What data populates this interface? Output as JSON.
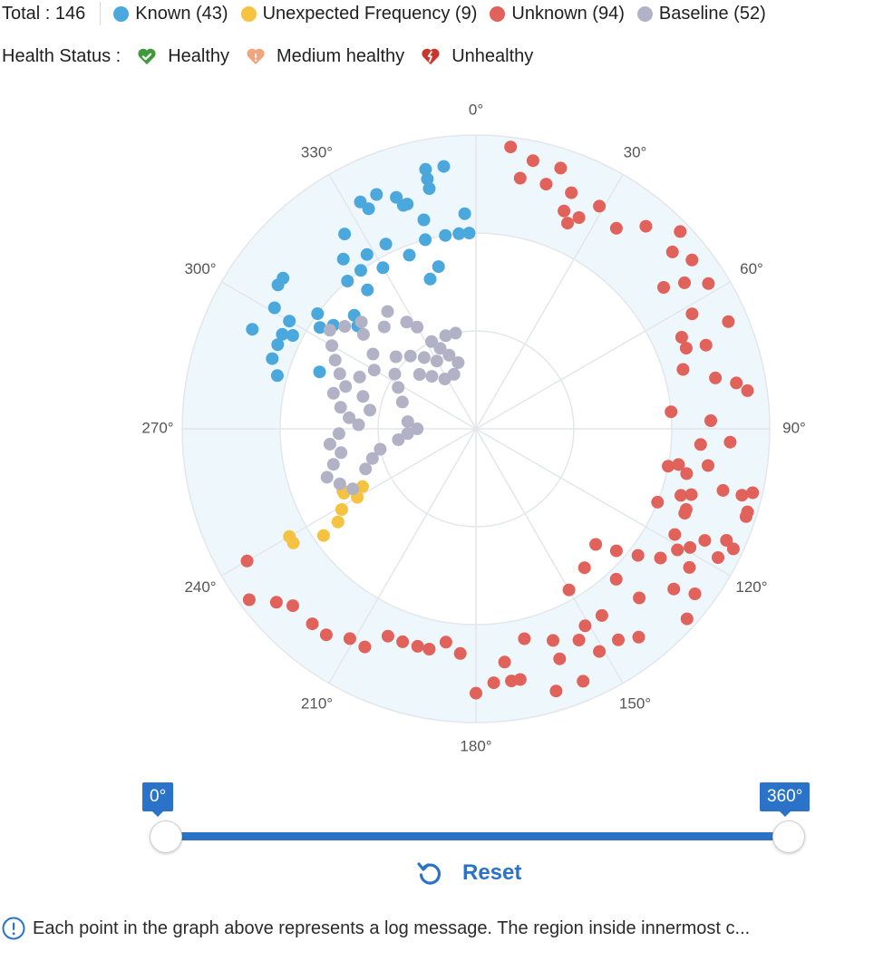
{
  "header": {
    "total_label": "Total : 146",
    "legend": [
      {
        "label": "Known (43)",
        "color": "#4aa8dd"
      },
      {
        "label": "Unexpected Frequency (9)",
        "color": "#f5c242"
      },
      {
        "label": "Unknown (94)",
        "color": "#e0625a"
      },
      {
        "label": "Baseline (52)",
        "color": "#b2b2c6"
      }
    ]
  },
  "health": {
    "label": "Health Status :",
    "items": [
      {
        "label": "Healthy",
        "icon": "heart-check-icon",
        "color": "#3f9a3b"
      },
      {
        "label": "Medium healthy",
        "icon": "heart-warning-icon",
        "color": "#f0a57c"
      },
      {
        "label": "Unhealthy",
        "icon": "heart-broken-icon",
        "color": "#c9372c"
      }
    ]
  },
  "chart_data": {
    "type": "scatter",
    "coordinate_system": "polar",
    "angle_ticks": [
      "0°",
      "30°",
      "60°",
      "90°",
      "120°",
      "150°",
      "180°",
      "210°",
      "240°",
      "270°",
      "300°",
      "330°"
    ],
    "rings": 3,
    "series": [
      {
        "name": "Known",
        "color": "#4aa8dd",
        "points": [
          [
            324,
            2.0
          ],
          [
            322,
            2.2
          ],
          [
            330,
            1.9
          ],
          [
            334,
            2.1
          ],
          [
            347,
            1.7
          ],
          [
            343,
            1.6
          ],
          [
            343,
            2.4
          ],
          [
            346,
            2.2
          ],
          [
            342,
            2.4
          ],
          [
            339,
            1.9
          ],
          [
            334,
            2.5
          ],
          [
            333,
            2.6
          ],
          [
            328,
            2.1
          ],
          [
            322,
            1.8
          ],
          [
            319,
            2.0
          ],
          [
            313,
            1.7
          ],
          [
            306,
            1.8
          ],
          [
            306,
            2.0
          ],
          [
            308,
            2.5
          ],
          [
            300,
            2.2
          ],
          [
            296,
            2.2
          ],
          [
            293,
            2.2
          ],
          [
            290,
            1.7
          ],
          [
            289,
            2.2
          ],
          [
            285,
            2.1
          ],
          [
            294,
            2.5
          ],
          [
            301,
            2.4
          ],
          [
            297,
            2.1
          ],
          [
            303,
            1.9
          ],
          [
            311,
            1.6
          ],
          [
            306,
            2.5
          ],
          [
            326,
            2.4
          ],
          [
            337,
            2.6
          ],
          [
            345,
            2.0
          ],
          [
            351,
            2.0
          ],
          [
            355,
            2.0
          ],
          [
            358,
            2.0
          ],
          [
            357,
            2.2
          ],
          [
            353,
            2.7
          ],
          [
            349,
            2.5
          ],
          [
            349,
            2.6
          ],
          [
            341,
            2.5
          ],
          [
            349,
            2.7
          ]
        ]
      },
      {
        "name": "Unexpected Frequency",
        "color": "#f5c242",
        "points": [
          [
            243,
            1.3
          ],
          [
            240,
            1.4
          ],
          [
            244,
            1.5
          ],
          [
            239,
            1.6
          ],
          [
            245,
            1.5
          ],
          [
            236,
            1.7
          ],
          [
            235,
            1.9
          ],
          [
            240,
            2.2
          ],
          [
            238,
            2.2
          ]
        ]
      },
      {
        "name": "Unknown",
        "color": "#e0625a",
        "points": [
          [
            7,
            2.9
          ],
          [
            10,
            2.6
          ],
          [
            12,
            2.8
          ],
          [
            16,
            2.6
          ],
          [
            18,
            2.8
          ],
          [
            22,
            2.6
          ],
          [
            24,
            2.3
          ],
          [
            22,
            2.4
          ],
          [
            26,
            2.4
          ],
          [
            29,
            2.6
          ],
          [
            35,
            2.5
          ],
          [
            40,
            2.7
          ],
          [
            46,
            2.9
          ],
          [
            48,
            2.7
          ],
          [
            53,
            2.4
          ],
          [
            52,
            2.8
          ],
          [
            55,
            2.6
          ],
          [
            58,
            2.8
          ],
          [
            62,
            2.5
          ],
          [
            66,
            2.3
          ],
          [
            67,
            2.8
          ],
          [
            74,
            2.2
          ],
          [
            69,
            2.3
          ],
          [
            70,
            2.5
          ],
          [
            78,
            2.5
          ],
          [
            80,
            2.7
          ],
          [
            82,
            2.8
          ],
          [
            85,
            2.0
          ],
          [
            88,
            2.4
          ],
          [
            93,
            2.6
          ],
          [
            99,
            2.4
          ],
          [
            104,
            2.6
          ],
          [
            107,
            2.9
          ],
          [
            112,
            2.3
          ],
          [
            114,
            2.8
          ],
          [
            118,
            2.8
          ],
          [
            123,
            2.6
          ],
          [
            127,
            2.8
          ],
          [
            132,
            2.9
          ],
          [
            125,
            2.3
          ],
          [
            128,
            2.1
          ],
          [
            129,
            2.6
          ],
          [
            136,
            2.4
          ],
          [
            142,
            2.7
          ],
          [
            146,
            2.6
          ],
          [
            151,
            2.6
          ],
          [
            157,
            2.8
          ],
          [
            163,
            2.8
          ],
          [
            170,
            2.6
          ],
          [
            176,
            2.6
          ],
          [
            180,
            2.7
          ],
          [
            184,
            2.3
          ],
          [
            188,
            2.2
          ],
          [
            192,
            2.3
          ],
          [
            195,
            2.3
          ],
          [
            199,
            2.3
          ],
          [
            203,
            2.3
          ],
          [
            207,
            2.5
          ],
          [
            211,
            2.5
          ],
          [
            216,
            2.6
          ],
          [
            220,
            2.6
          ],
          [
            226,
            2.6
          ],
          [
            229,
            2.7
          ],
          [
            233,
            2.9
          ],
          [
            240,
            2.7
          ],
          [
            115,
            2.9
          ],
          [
            118,
            2.3
          ],
          [
            116,
            2.6
          ],
          [
            119,
            2.5
          ],
          [
            103,
            2.9
          ],
          [
            104,
            2.8
          ],
          [
            108,
            2.9
          ],
          [
            100,
            2.1
          ],
          [
            102,
            2.2
          ],
          [
            108,
            2.2
          ],
          [
            107,
            2.3
          ],
          [
            111,
            2.3
          ],
          [
            112,
            2.0
          ],
          [
            137,
            2.1
          ],
          [
            146,
            2.3
          ],
          [
            154,
            2.4
          ],
          [
            160,
            2.3
          ],
          [
            173,
            2.4
          ],
          [
            172,
            2.6
          ],
          [
            160,
            2.5
          ],
          [
            167,
            2.2
          ],
          [
            151,
            2.3
          ],
          [
            142,
            1.8
          ],
          [
            150,
            1.9
          ],
          [
            131,
            1.9
          ],
          [
            134,
            1.7
          ],
          [
            94,
            2.3
          ],
          [
            101,
            2.0
          ],
          [
            121,
            2.4
          ]
        ]
      },
      {
        "name": "Baseline",
        "color": "#b2b2c6",
        "points": [
          [
            333,
            1.0
          ],
          [
            330,
            1.2
          ],
          [
            327,
            1.3
          ],
          [
            323,
            1.5
          ],
          [
            318,
            1.4
          ],
          [
            313,
            1.6
          ],
          [
            308,
            1.7
          ],
          [
            304,
            1.8
          ],
          [
            300,
            1.7
          ],
          [
            296,
            1.6
          ],
          [
            292,
            1.5
          ],
          [
            288,
            1.4
          ],
          [
            284,
            1.5
          ],
          [
            279,
            1.4
          ],
          [
            275,
            1.3
          ],
          [
            272,
            1.2
          ],
          [
            268,
            1.4
          ],
          [
            264,
            1.5
          ],
          [
            260,
            1.4
          ],
          [
            256,
            1.5
          ],
          [
            252,
            1.6
          ],
          [
            248,
            1.5
          ],
          [
            244,
            1.4
          ],
          [
            300,
            1.2
          ],
          [
            306,
            1.3
          ],
          [
            312,
            1.1
          ],
          [
            318,
            1.0
          ],
          [
            324,
            0.9
          ],
          [
            330,
            0.8
          ],
          [
            336,
            0.9
          ],
          [
            342,
            1.0
          ],
          [
            348,
            1.0
          ],
          [
            310,
            1.5
          ],
          [
            294,
            1.3
          ],
          [
            286,
            1.2
          ],
          [
            280,
            1.1
          ],
          [
            276,
            0.7
          ],
          [
            270,
            0.6
          ],
          [
            266,
            0.7
          ],
          [
            262,
            0.8
          ],
          [
            258,
            1.0
          ],
          [
            254,
            1.1
          ],
          [
            250,
            1.2
          ],
          [
            290,
            0.8
          ],
          [
            298,
            0.9
          ],
          [
            304,
            1.0
          ],
          [
            314,
            0.8
          ],
          [
            320,
            0.7
          ],
          [
            328,
            0.6
          ],
          [
            338,
            0.6
          ],
          [
            345,
            0.7
          ],
          [
            340,
            0.8
          ]
        ]
      }
    ]
  },
  "slider": {
    "min_label": "0°",
    "max_label": "360°"
  },
  "reset": {
    "label": "Reset"
  },
  "footnote": {
    "text": "Each point in the graph above represents a log message. The region inside innermost c..."
  }
}
